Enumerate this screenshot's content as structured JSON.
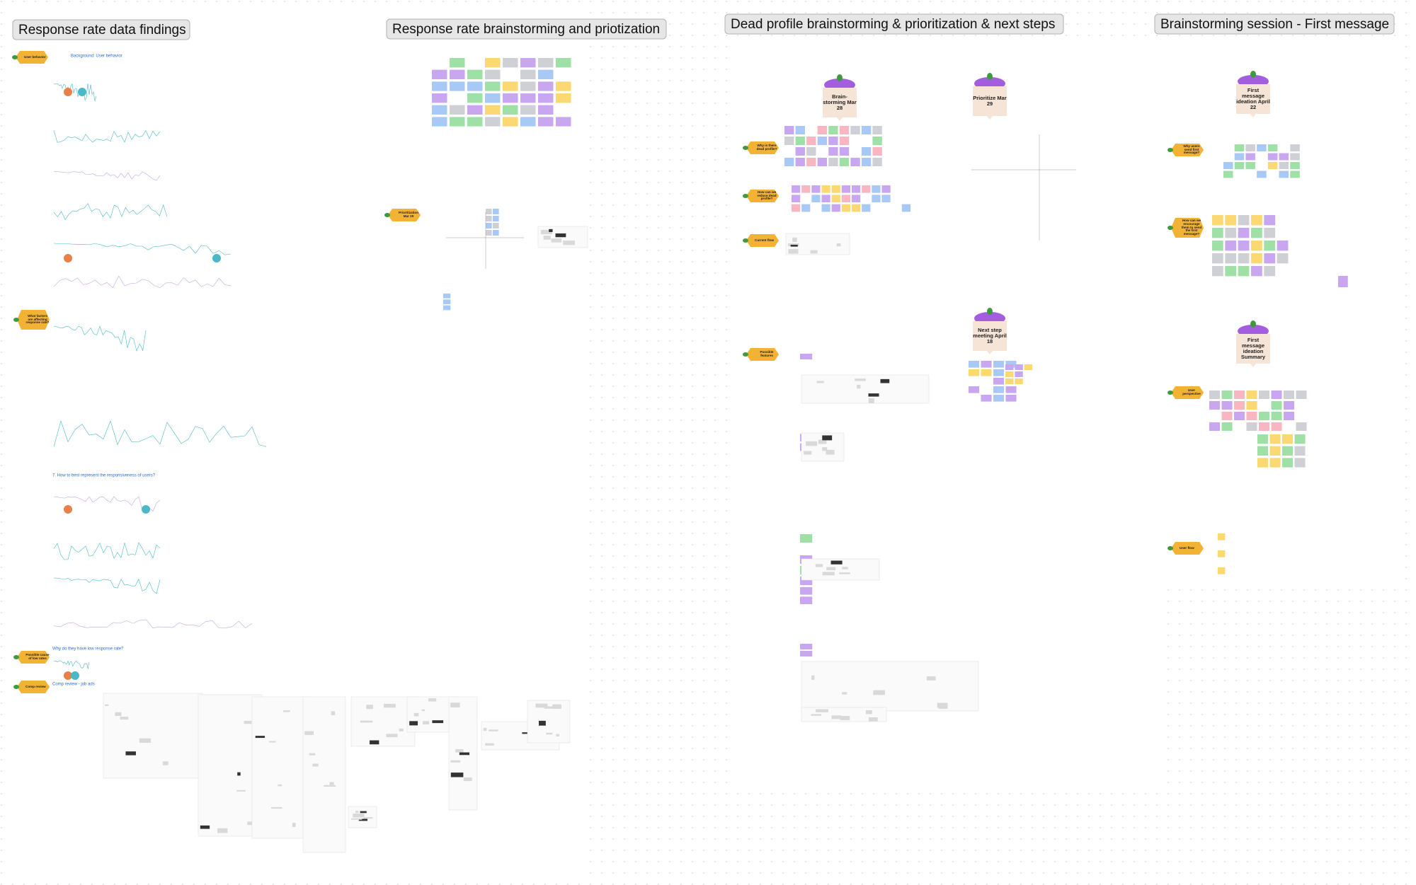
{
  "sections": [
    {
      "title": "Response rate data findings"
    },
    {
      "title": "Response rate brainstorming and priotization"
    },
    {
      "title": "Dead profile brainstorming & prioritization & next steps"
    },
    {
      "title": "Brainstorming session - First message"
    }
  ],
  "headings": [
    "Background: User behavior",
    "7. How to best represent the responsiveness of users?",
    "Why do they have low response rate?",
    "Comp review - job ads"
  ],
  "tags": [
    "User behavior",
    "What factors are affecting response rate?",
    "Possible cause of low rates",
    "Comp review",
    "Prioritization Mar 29",
    "Why is there dead profile?",
    "How can we reduce dead profile?",
    "Current flow",
    "Possible features",
    "Why users send first message?",
    "How can we encourage them to send the first message?",
    "User perspective",
    "User flow"
  ],
  "milestones": [
    "Brain-storming Mar 28",
    "Prioritize Mar 29",
    "Next step meeting April 18",
    "First message ideation April 22",
    "First message ideation Summary"
  ]
}
